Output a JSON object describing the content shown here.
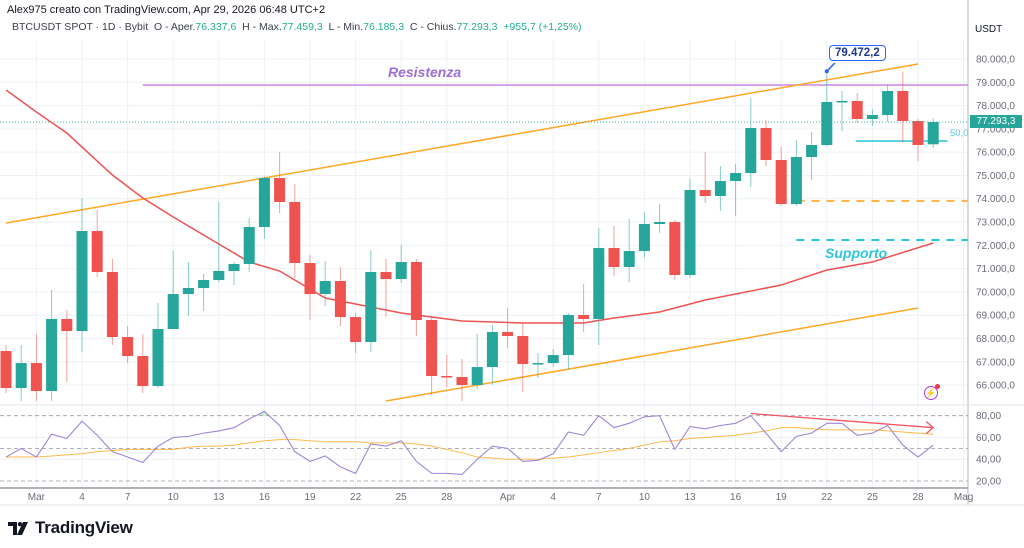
{
  "header": {
    "attribution": "Alex975 creato con TradingView.com, Apr 29, 2026 06:48 UTC+2",
    "symbol": "BTCUSDT SPOT · 1D · Bybit",
    "open_label": "O - Aper.",
    "open": "76.337,6",
    "high_label": "H - Max.",
    "high": "77.459,3",
    "low_label": "L - Min.",
    "low": "76.185,3",
    "close_label": "C - Chius.",
    "close": "77.293,3",
    "change": "+955,7 (+1,25%)"
  },
  "price_axis": {
    "currency": "USDT",
    "last_price": "77.293,3",
    "ticks": [
      "80.000,0",
      "79.000,0",
      "78.000,0",
      "77.000,0",
      "76.000,0",
      "75.000,0",
      "74.000,0",
      "73.000,0",
      "72.000,0",
      "71.000,0",
      "70.000,0",
      "69.000,0",
      "68.000,0",
      "67.000,0",
      "66.000,0"
    ],
    "tick_values": [
      80000,
      79000,
      78000,
      77000,
      76000,
      75000,
      74000,
      73000,
      72000,
      71000,
      70000,
      69000,
      68000,
      67000,
      66000
    ]
  },
  "rsi_axis": {
    "ticks": [
      "80,00",
      "60,00",
      "40,00",
      "20,00"
    ],
    "tick_values": [
      80,
      60,
      40,
      20
    ],
    "levels": [
      80,
      50,
      20
    ]
  },
  "time_axis": [
    {
      "label": "Mar",
      "date": "2026-03-01"
    },
    {
      "label": "4",
      "date": "2026-03-04"
    },
    {
      "label": "7",
      "date": "2026-03-07"
    },
    {
      "label": "10",
      "date": "2026-03-10"
    },
    {
      "label": "13",
      "date": "2026-03-13"
    },
    {
      "label": "16",
      "date": "2026-03-16"
    },
    {
      "label": "19",
      "date": "2026-03-19"
    },
    {
      "label": "22",
      "date": "2026-03-22"
    },
    {
      "label": "25",
      "date": "2026-03-25"
    },
    {
      "label": "28",
      "date": "2026-03-28"
    },
    {
      "label": "Apr",
      "date": "2026-04-01"
    },
    {
      "label": "4",
      "date": "2026-04-04"
    },
    {
      "label": "7",
      "date": "2026-04-07"
    },
    {
      "label": "10",
      "date": "2026-04-10"
    },
    {
      "label": "13",
      "date": "2026-04-13"
    },
    {
      "label": "16",
      "date": "2026-04-16"
    },
    {
      "label": "19",
      "date": "2026-04-19"
    },
    {
      "label": "22",
      "date": "2026-04-22"
    },
    {
      "label": "25",
      "date": "2026-04-25"
    },
    {
      "label": "28",
      "date": "2026-04-28"
    },
    {
      "label": "Mag",
      "date": "2026-05-01"
    }
  ],
  "annotations": {
    "resistance_label": "Resistenza",
    "support_label": "Supporto",
    "high_callout": "79.472,2",
    "fib_label": "50,0"
  },
  "colors": {
    "up": "#26a69a",
    "down": "#ef5350",
    "ma": "#f05252",
    "trendline": "#ffa726",
    "resistance": "#c987e6",
    "support": "#26c6da",
    "orange_dashed": "#ffb74d",
    "rsi": "#9f85d9",
    "rsi_ma": "#ffb74d",
    "divergence": "#f7525f",
    "grid": "#eef2f6"
  },
  "logo": {
    "text": "TradingView"
  },
  "chart_data": {
    "type": "candlestick",
    "columns": [
      "date",
      "open",
      "high",
      "low",
      "close"
    ],
    "candles": [
      [
        "2026-02-27",
        67461,
        67719,
        65658,
        65873
      ],
      [
        "2026-02-28",
        65873,
        67719,
        65315,
        66946
      ],
      [
        "2026-03-01",
        66946,
        68191,
        65315,
        65744
      ],
      [
        "2026-03-02",
        65744,
        70081,
        65315,
        68836
      ],
      [
        "2026-03-03",
        68836,
        69222,
        66130,
        68320
      ],
      [
        "2026-03-04",
        68320,
        74031,
        67418,
        72614
      ],
      [
        "2026-03-05",
        72614,
        73516,
        70639,
        70854
      ],
      [
        "2026-03-06",
        70854,
        71412,
        67719,
        68063
      ],
      [
        "2026-03-07",
        68063,
        68535,
        66946,
        67246
      ],
      [
        "2026-03-08",
        67246,
        68191,
        65658,
        65958
      ],
      [
        "2026-03-09",
        65958,
        69523,
        65873,
        68406
      ],
      [
        "2026-03-10",
        68406,
        71755,
        68406,
        69909
      ],
      [
        "2026-03-11",
        69909,
        71283,
        68964,
        70167
      ],
      [
        "2026-03-12",
        70167,
        70768,
        69179,
        70510
      ],
      [
        "2026-03-13",
        70510,
        73860,
        70424,
        70897
      ],
      [
        "2026-03-14",
        70897,
        71283,
        70295,
        71197
      ],
      [
        "2026-03-15",
        71197,
        73172,
        70854,
        72786
      ],
      [
        "2026-03-16",
        72786,
        74950,
        72271,
        74890
      ],
      [
        "2026-03-17",
        74890,
        76006,
        73387,
        73860
      ],
      [
        "2026-03-18",
        73860,
        74633,
        70596,
        71240
      ],
      [
        "2026-03-19",
        71240,
        71584,
        68793,
        69909
      ],
      [
        "2026-03-20",
        69909,
        71326,
        69394,
        70467
      ],
      [
        "2026-03-21",
        70467,
        71069,
        68535,
        68921
      ],
      [
        "2026-03-22",
        68921,
        69093,
        67375,
        67848
      ],
      [
        "2026-03-23",
        67848,
        71798,
        67418,
        70854
      ],
      [
        "2026-03-24",
        70854,
        71412,
        68921,
        70553
      ],
      [
        "2026-03-25",
        70553,
        72013,
        70382,
        71283
      ],
      [
        "2026-03-26",
        71283,
        71412,
        68106,
        68793
      ],
      [
        "2026-03-27",
        68793,
        68964,
        65572,
        66388
      ],
      [
        "2026-03-28",
        66388,
        67289,
        65916,
        66345
      ],
      [
        "2026-03-29",
        66345,
        67118,
        65315,
        66001
      ],
      [
        "2026-03-30",
        66001,
        68191,
        65830,
        66774
      ],
      [
        "2026-03-31",
        66774,
        68578,
        66001,
        68277
      ],
      [
        "2026-04-01",
        68277,
        69308,
        67590,
        68106
      ],
      [
        "2026-04-02",
        68106,
        68664,
        65701,
        66903
      ],
      [
        "2026-04-03",
        66903,
        67375,
        66302,
        66946
      ],
      [
        "2026-04-04",
        66946,
        67547,
        66774,
        67289
      ],
      [
        "2026-04-05",
        67289,
        69093,
        66645,
        69007
      ],
      [
        "2026-04-06",
        69007,
        70338,
        68277,
        68836
      ],
      [
        "2026-04-07",
        68836,
        72743,
        67719,
        71884
      ],
      [
        "2026-04-08",
        71884,
        72829,
        70682,
        71069
      ],
      [
        "2026-04-09",
        71069,
        73130,
        70424,
        71755
      ],
      [
        "2026-04-10",
        71755,
        73430,
        71455,
        72915
      ],
      [
        "2026-04-11",
        72915,
        73774,
        72528,
        73001
      ],
      [
        "2026-04-12",
        73001,
        73087,
        70510,
        70725
      ],
      [
        "2026-04-13",
        70725,
        74847,
        70596,
        74375
      ],
      [
        "2026-04-14",
        74375,
        76006,
        73817,
        74117
      ],
      [
        "2026-04-15",
        74117,
        75405,
        73473,
        74761
      ],
      [
        "2026-04-16",
        74761,
        75491,
        73258,
        75105
      ],
      [
        "2026-04-17",
        75105,
        78325,
        74504,
        77037
      ],
      [
        "2026-04-18",
        77037,
        77381,
        75405,
        75663
      ],
      [
        "2026-04-19",
        75663,
        76221,
        73688,
        73774
      ],
      [
        "2026-04-20",
        73774,
        76522,
        73688,
        75792
      ],
      [
        "2026-04-21",
        75792,
        76865,
        74804,
        76307
      ],
      [
        "2026-04-22",
        76307,
        79472.2,
        76250,
        78154
      ],
      [
        "2026-04-23",
        78154,
        78626,
        76908,
        78197
      ],
      [
        "2026-04-24",
        78197,
        78540,
        77252,
        77424
      ],
      [
        "2026-04-25",
        77424,
        77853,
        77123,
        77595
      ],
      [
        "2026-04-26",
        77595,
        78884,
        77295,
        78626
      ],
      [
        "2026-04-27",
        78626,
        79450,
        76436,
        77338
      ],
      [
        "2026-04-28",
        77338,
        77424,
        75620,
        76307
      ],
      [
        "2026-04-29",
        76337.6,
        77459.3,
        76185.3,
        77293.3
      ]
    ],
    "moving_average": [
      [
        "2026-02-27",
        78670
      ],
      [
        "2026-03-01",
        77724
      ],
      [
        "2026-03-03",
        76822
      ],
      [
        "2026-03-06",
        75019
      ],
      [
        "2026-03-08",
        74031
      ],
      [
        "2026-03-10",
        73215
      ],
      [
        "2026-03-15",
        71283
      ],
      [
        "2026-03-17",
        70897
      ],
      [
        "2026-03-20",
        69737
      ],
      [
        "2026-03-25",
        69093
      ],
      [
        "2026-03-29",
        68750
      ],
      [
        "2026-04-02",
        68664
      ],
      [
        "2026-04-06",
        68664
      ],
      [
        "2026-04-08",
        68880
      ],
      [
        "2026-04-11",
        69137
      ],
      [
        "2026-04-14",
        69652
      ],
      [
        "2026-04-19",
        70295
      ],
      [
        "2026-04-22",
        70940
      ],
      [
        "2026-04-25",
        71283
      ],
      [
        "2026-04-29",
        72100
      ]
    ],
    "rsi": [
      42,
      50,
      42,
      63,
      59,
      75,
      62,
      47,
      42,
      37,
      52,
      60,
      61,
      64,
      66,
      69,
      77,
      84,
      71,
      47,
      38,
      43,
      33,
      27,
      54,
      52,
      57,
      38,
      27,
      27,
      26,
      40,
      52,
      50,
      38,
      39,
      45,
      65,
      62,
      80,
      69,
      73,
      79,
      80,
      49,
      70,
      68,
      71,
      73,
      80,
      64,
      47,
      61,
      64,
      73,
      73,
      62,
      64,
      71,
      53,
      42,
      53
    ],
    "rsi_ma": [
      42,
      42,
      42,
      43,
      44,
      45,
      47,
      48,
      49,
      49,
      49,
      49,
      51,
      52,
      52,
      53,
      55,
      57,
      58,
      58,
      57,
      56,
      56,
      56,
      55,
      55,
      55,
      54,
      52,
      49,
      46,
      42,
      41,
      40,
      40,
      40,
      41,
      42,
      44,
      46,
      48,
      50,
      53,
      56,
      57,
      59,
      60,
      61,
      62,
      64,
      66,
      69,
      69,
      68,
      67,
      67,
      67,
      67,
      66,
      65,
      64,
      63
    ],
    "drawings": {
      "upper_trendline": [
        [
          "2026-02-27",
          72958
        ],
        [
          "2026-04-28",
          79785
        ]
      ],
      "lower_trendline": [
        [
          "2026-03-24",
          65315
        ],
        [
          "2026-04-28",
          69308
        ]
      ],
      "resistance": {
        "from": "2026-03-08",
        "price": 78884
      },
      "orange_dashed": {
        "from": "2026-04-20",
        "price": 73903
      },
      "support_dashed": {
        "from": "2026-04-20",
        "price": 72228
      },
      "fib_level": {
        "from": "2026-04-24",
        "to": "2026-04-30",
        "price": 76479
      },
      "rsi_divergence": [
        [
          "2026-04-17",
          82
        ],
        [
          "2026-04-29",
          69
        ]
      ]
    },
    "ylim": [
      65300,
      80800
    ],
    "rsi_ylim": [
      10,
      90
    ]
  }
}
